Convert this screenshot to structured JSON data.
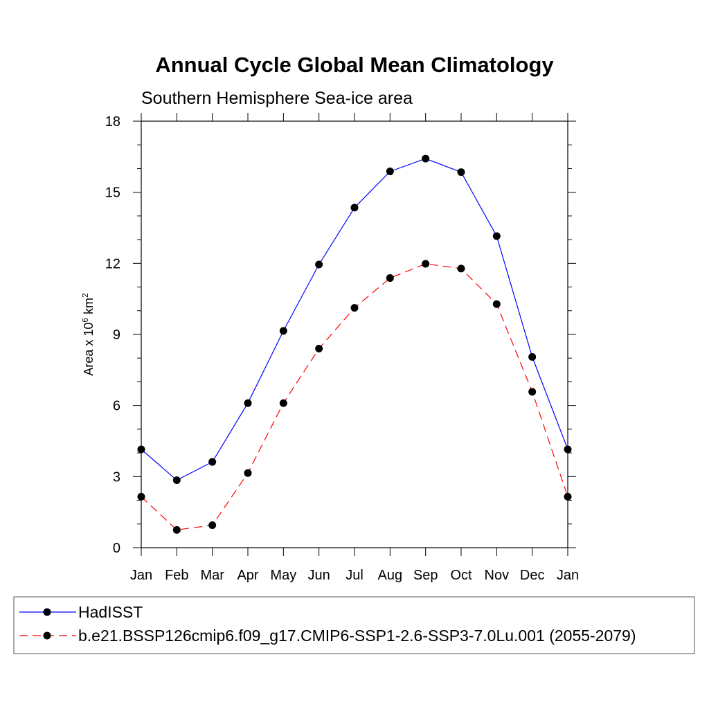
{
  "chart_data": {
    "type": "line",
    "title": "Annual Cycle Global Mean Climatology",
    "subtitle": "Southern Hemisphere Sea-ice area",
    "ylabel": {
      "base": "Area x 10",
      "exp": "6",
      "unit": " km",
      "unit_exp": "2"
    },
    "xlabel": "",
    "categories": [
      "Jan",
      "Feb",
      "Mar",
      "Apr",
      "May",
      "Jun",
      "Jul",
      "Aug",
      "Sep",
      "Oct",
      "Nov",
      "Dec",
      "Jan"
    ],
    "ylim": [
      0,
      18
    ],
    "yticks": [
      0,
      3,
      6,
      9,
      12,
      15,
      18
    ],
    "yminor_step": 1,
    "grid": false,
    "legend_position": "bottom",
    "series": [
      {
        "name": "HadISST",
        "color": "#0000ff",
        "dash": "solid",
        "marker": "filled-circle",
        "values": [
          4.15,
          2.85,
          3.62,
          6.1,
          9.15,
          11.95,
          14.35,
          15.88,
          16.42,
          15.85,
          13.15,
          8.05,
          4.15
        ]
      },
      {
        "name": "b.e21.BSSP126cmip6.f09_g17.CMIP6-SSP1-2.6-SSP3-7.0Lu.001 (2055-2079)",
        "color": "#ff0000",
        "dash": "dashed",
        "marker": "filled-circle",
        "values": [
          2.15,
          0.75,
          0.95,
          3.15,
          6.1,
          8.4,
          10.12,
          11.38,
          11.98,
          11.78,
          10.28,
          6.58,
          2.15
        ]
      }
    ]
  }
}
